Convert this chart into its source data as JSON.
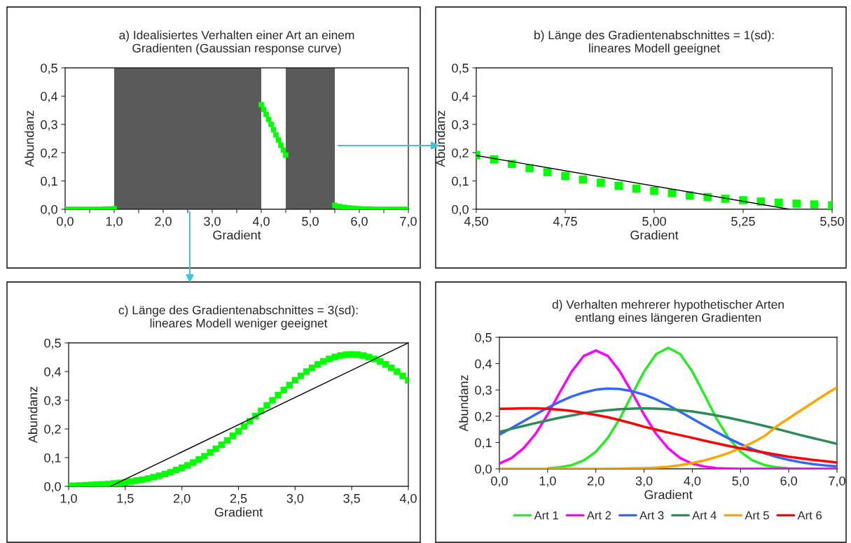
{
  "chart_data": [
    {
      "type": "scatter",
      "title": "a) Idealisiertes Verhalten einer Art an einem\nGradienten (Gaussian response curve)",
      "xlabel": "Gradient",
      "ylabel": "Abundanz",
      "marker": "square",
      "grid": false,
      "x": [
        0,
        0.1,
        0.2,
        0.3,
        0.4,
        0.5,
        0.6,
        0.7,
        0.8,
        0.9,
        1.0,
        4.0,
        4.05,
        4.1,
        4.15,
        4.2,
        4.25,
        4.3,
        4.35,
        4.4,
        4.45,
        4.5,
        5.5,
        5.6,
        5.7,
        5.8,
        5.9,
        6.0,
        6.1,
        6.2,
        6.3,
        6.4,
        6.5,
        6.6,
        6.7,
        6.8,
        6.9,
        7.0
      ],
      "values": [
        0,
        0,
        0,
        0,
        0,
        0,
        0,
        0,
        0.001,
        0.001,
        0.002,
        0.37,
        0.353,
        0.336,
        0.318,
        0.3,
        0.282,
        0.263,
        0.245,
        0.227,
        0.209,
        0.192,
        0.014,
        0.01,
        0.007,
        0.005,
        0.003,
        0.002,
        0.001,
        0.001,
        0,
        0,
        0,
        0,
        0,
        0,
        0,
        0
      ],
      "color": "#00ff00",
      "bands": [
        {
          "axis": "x",
          "from": 1.0,
          "to": 4.0,
          "color": "#5a5a5a"
        },
        {
          "axis": "x",
          "from": 4.5,
          "to": 5.5,
          "color": "#5a5a5a"
        }
      ],
      "xlim": [
        0,
        7
      ],
      "xticks": [
        {
          "value": 0,
          "label": "0,0"
        },
        {
          "value": 0.5,
          "label": null
        },
        {
          "value": 1,
          "label": "1,0"
        },
        {
          "value": 1.5,
          "label": null
        },
        {
          "value": 2,
          "label": "2,0"
        },
        {
          "value": 2.5,
          "label": null
        },
        {
          "value": 3,
          "label": "3,0"
        },
        {
          "value": 3.5,
          "label": null
        },
        {
          "value": 4,
          "label": "4,0"
        },
        {
          "value": 4.5,
          "label": null
        },
        {
          "value": 5,
          "label": "5,0"
        },
        {
          "value": 5.5,
          "label": null
        },
        {
          "value": 6,
          "label": "6,0"
        },
        {
          "value": 6.5,
          "label": null
        },
        {
          "value": 7,
          "label": "7,0"
        }
      ],
      "ylim": [
        0,
        0.5
      ],
      "yticks": [
        {
          "value": 0,
          "label": "0,0"
        },
        {
          "value": 0.1,
          "label": "0,1"
        },
        {
          "value": 0.2,
          "label": "0,2"
        },
        {
          "value": 0.3,
          "label": "0,3"
        },
        {
          "value": 0.4,
          "label": "0,4"
        },
        {
          "value": 0.5,
          "label": "0,5"
        }
      ]
    },
    {
      "type": "scatter",
      "title": "b) Länge des Gradientenabschnittes = 1(sd):\nlineares Modell geeignet",
      "xlabel": "Gradient",
      "ylabel": "Abundanz",
      "marker": "square",
      "grid": false,
      "series": [
        {
          "type": "scatter",
          "color": "#00ff00",
          "x": [
            4.5,
            4.55,
            4.6,
            4.65,
            4.7,
            4.75,
            4.8,
            4.85,
            4.9,
            4.95,
            5.0,
            5.05,
            5.1,
            5.15,
            5.2,
            5.25,
            5.3,
            5.35,
            5.4,
            5.45,
            5.5
          ],
          "values": [
            0.192,
            0.176,
            0.16,
            0.145,
            0.131,
            0.118,
            0.105,
            0.094,
            0.083,
            0.073,
            0.065,
            0.057,
            0.049,
            0.043,
            0.037,
            0.032,
            0.027,
            0.023,
            0.02,
            0.017,
            0.014
          ]
        },
        {
          "type": "line",
          "marker": "none",
          "color": "#000000",
          "x": [
            4.5,
            5.38
          ],
          "values": [
            0.19,
            0.0
          ]
        }
      ],
      "xlim": [
        4.5,
        5.5
      ],
      "xticks": [
        {
          "value": 4.5,
          "label": "4,50"
        },
        {
          "value": 4.75,
          "label": "4,75"
        },
        {
          "value": 5.0,
          "label": "5,00"
        },
        {
          "value": 5.25,
          "label": "5,25"
        },
        {
          "value": 5.5,
          "label": "5,50"
        }
      ],
      "ylim": [
        0,
        0.5
      ],
      "yticks": [
        {
          "value": 0,
          "label": "0,0"
        },
        {
          "value": 0.1,
          "label": "0,1"
        },
        {
          "value": 0.2,
          "label": "0,2"
        },
        {
          "value": 0.3,
          "label": "0,3"
        },
        {
          "value": 0.4,
          "label": "0,4"
        },
        {
          "value": 0.5,
          "label": "0,5"
        }
      ]
    },
    {
      "type": "scatter",
      "title": "c) Länge des Gradientenabschnittes = 3(sd):\nlineares Modell weniger geeignet",
      "xlabel": "Gradient",
      "ylabel": "Abundanz",
      "marker": "square",
      "grid": false,
      "series": [
        {
          "type": "scatter",
          "color": "#00ff00",
          "x": [
            1.0,
            1.05,
            1.1,
            1.15,
            1.2,
            1.25,
            1.3,
            1.35,
            1.4,
            1.45,
            1.5,
            1.55,
            1.6,
            1.65,
            1.7,
            1.75,
            1.8,
            1.85,
            1.9,
            1.95,
            2.0,
            2.05,
            2.1,
            2.15,
            2.2,
            2.25,
            2.3,
            2.35,
            2.4,
            2.45,
            2.5,
            2.55,
            2.6,
            2.65,
            2.7,
            2.75,
            2.8,
            2.85,
            2.9,
            2.95,
            3.0,
            3.05,
            3.1,
            3.15,
            3.2,
            3.25,
            3.3,
            3.35,
            3.4,
            3.45,
            3.5,
            3.55,
            3.6,
            3.65,
            3.7,
            3.75,
            3.8,
            3.85,
            3.9,
            3.95,
            4.0
          ],
          "values": [
            0.002,
            0.002,
            0.003,
            0.004,
            0.005,
            0.006,
            0.007,
            0.008,
            0.01,
            0.012,
            0.014,
            0.017,
            0.02,
            0.023,
            0.027,
            0.032,
            0.037,
            0.043,
            0.049,
            0.057,
            0.065,
            0.073,
            0.083,
            0.094,
            0.105,
            0.118,
            0.131,
            0.145,
            0.16,
            0.176,
            0.192,
            0.209,
            0.227,
            0.245,
            0.263,
            0.282,
            0.3,
            0.318,
            0.336,
            0.353,
            0.37,
            0.385,
            0.4,
            0.413,
            0.425,
            0.436,
            0.444,
            0.451,
            0.456,
            0.459,
            0.46,
            0.459,
            0.456,
            0.451,
            0.444,
            0.436,
            0.425,
            0.413,
            0.4,
            0.385,
            0.37
          ]
        },
        {
          "type": "line",
          "marker": "none",
          "color": "#000000",
          "x": [
            1.37,
            4.0
          ],
          "values": [
            0.0,
            0.5
          ]
        }
      ],
      "xlim": [
        1.0,
        4.0
      ],
      "xticks": [
        {
          "value": 1.0,
          "label": "1,0"
        },
        {
          "value": 1.5,
          "label": "1,5"
        },
        {
          "value": 2.0,
          "label": "2,0"
        },
        {
          "value": 2.5,
          "label": "2,5"
        },
        {
          "value": 3.0,
          "label": "3,0"
        },
        {
          "value": 3.5,
          "label": "3,5"
        },
        {
          "value": 4.0,
          "label": "4,0"
        }
      ],
      "ylim": [
        0,
        0.5
      ],
      "yticks": [
        {
          "value": 0,
          "label": "0,0"
        },
        {
          "value": 0.1,
          "label": "0,1"
        },
        {
          "value": 0.2,
          "label": "0,2"
        },
        {
          "value": 0.3,
          "label": "0,3"
        },
        {
          "value": 0.4,
          "label": "0,4"
        },
        {
          "value": 0.5,
          "label": "0,5"
        }
      ]
    },
    {
      "type": "line",
      "title": "d) Verhalten mehrerer hypothetischer Arten\nentlang eines längeren Gradienten",
      "xlabel": "Gradient",
      "ylabel": "Abundanz",
      "grid": false,
      "legend": "bottom",
      "x": [
        0,
        0.25,
        0.5,
        0.75,
        1.0,
        1.25,
        1.5,
        1.75,
        2.0,
        2.25,
        2.5,
        2.75,
        3.0,
        3.25,
        3.5,
        3.75,
        4.0,
        4.25,
        4.5,
        4.75,
        5.0,
        5.25,
        5.5,
        5.75,
        6.0,
        6.25,
        6.5,
        6.75,
        7.0
      ],
      "series": [
        {
          "name": "Art 1",
          "color": "#22ee22",
          "values": [
            null,
            null,
            null,
            null,
            0.002,
            0.006,
            0.014,
            0.032,
            0.065,
            0.118,
            0.192,
            0.282,
            0.37,
            0.436,
            0.46,
            0.436,
            0.37,
            0.282,
            0.192,
            0.118,
            0.065,
            0.032,
            0.014,
            0.006,
            0.002,
            0,
            null,
            null,
            null
          ]
        },
        {
          "name": "Art 2",
          "color": "#ff00ff",
          "values": [
            0.02,
            0.041,
            0.078,
            0.133,
            0.206,
            0.29,
            0.37,
            0.429,
            0.45,
            0.429,
            0.37,
            0.29,
            0.206,
            0.133,
            0.078,
            0.041,
            0.02,
            0.009,
            0.003,
            0.001,
            0,
            0,
            0,
            0,
            0,
            0,
            0,
            0,
            0
          ]
        },
        {
          "name": "Art 3",
          "color": "#3366ff",
          "values": [
            0.13,
            0.155,
            0.181,
            0.207,
            0.232,
            0.255,
            0.275,
            0.29,
            0.301,
            0.305,
            0.303,
            0.295,
            0.282,
            0.264,
            0.242,
            0.217,
            0.191,
            0.165,
            0.14,
            0.116,
            0.094,
            0.075,
            0.059,
            0.045,
            0.034,
            0.025,
            0.018,
            0.013,
            0.009
          ]
        },
        {
          "name": "Art 4",
          "color": "#2e8b57",
          "values": [
            0.14,
            0.152,
            0.163,
            0.174,
            0.184,
            0.194,
            0.203,
            0.211,
            0.218,
            0.223,
            0.227,
            0.229,
            0.23,
            0.229,
            0.227,
            0.223,
            0.218,
            0.211,
            0.203,
            0.194,
            0.184,
            0.174,
            0.163,
            0.152,
            0.14,
            0.128,
            0.117,
            0.106,
            0.095
          ]
        },
        {
          "name": "Art 5",
          "color": "#ffa500",
          "values": [
            0,
            0,
            0,
            0,
            0,
            0,
            0,
            0,
            0,
            0,
            0.001,
            0.002,
            0.003,
            0.005,
            0.008,
            0.014,
            0.022,
            0.032,
            0.045,
            0.06,
            0.078,
            0.1,
            0.125,
            0.162,
            0.192,
            0.222,
            0.252,
            0.282,
            0.31
          ]
        },
        {
          "name": "Art 6",
          "color": "#ff0000",
          "values": [
            0.228,
            0.229,
            0.23,
            0.23,
            0.228,
            0.225,
            0.22,
            0.213,
            0.205,
            0.196,
            0.185,
            0.173,
            0.16,
            0.149,
            0.138,
            0.128,
            0.118,
            0.107,
            0.097,
            0.087,
            0.078,
            0.07,
            0.062,
            0.054,
            0.046,
            0.04,
            0.034,
            0.029,
            0.024
          ]
        }
      ],
      "xlim": [
        0,
        7
      ],
      "xticks": [
        {
          "value": 0,
          "label": "0,0"
        },
        {
          "value": 1,
          "label": "1,0"
        },
        {
          "value": 2,
          "label": "2,0"
        },
        {
          "value": 3,
          "label": "3,0"
        },
        {
          "value": 4,
          "label": "4,0"
        },
        {
          "value": 5,
          "label": "5,0"
        },
        {
          "value": 6,
          "label": "6,0"
        },
        {
          "value": 7,
          "label": "7,0"
        }
      ],
      "ylim": [
        0,
        0.5
      ],
      "yticks": [
        {
          "value": 0,
          "label": "0,0"
        },
        {
          "value": 0.1,
          "label": "0,1"
        },
        {
          "value": 0.2,
          "label": "0,2"
        },
        {
          "value": 0.3,
          "label": "0,3"
        },
        {
          "value": 0.4,
          "label": "0,4"
        },
        {
          "value": 0.5,
          "label": "0,5"
        }
      ]
    }
  ]
}
